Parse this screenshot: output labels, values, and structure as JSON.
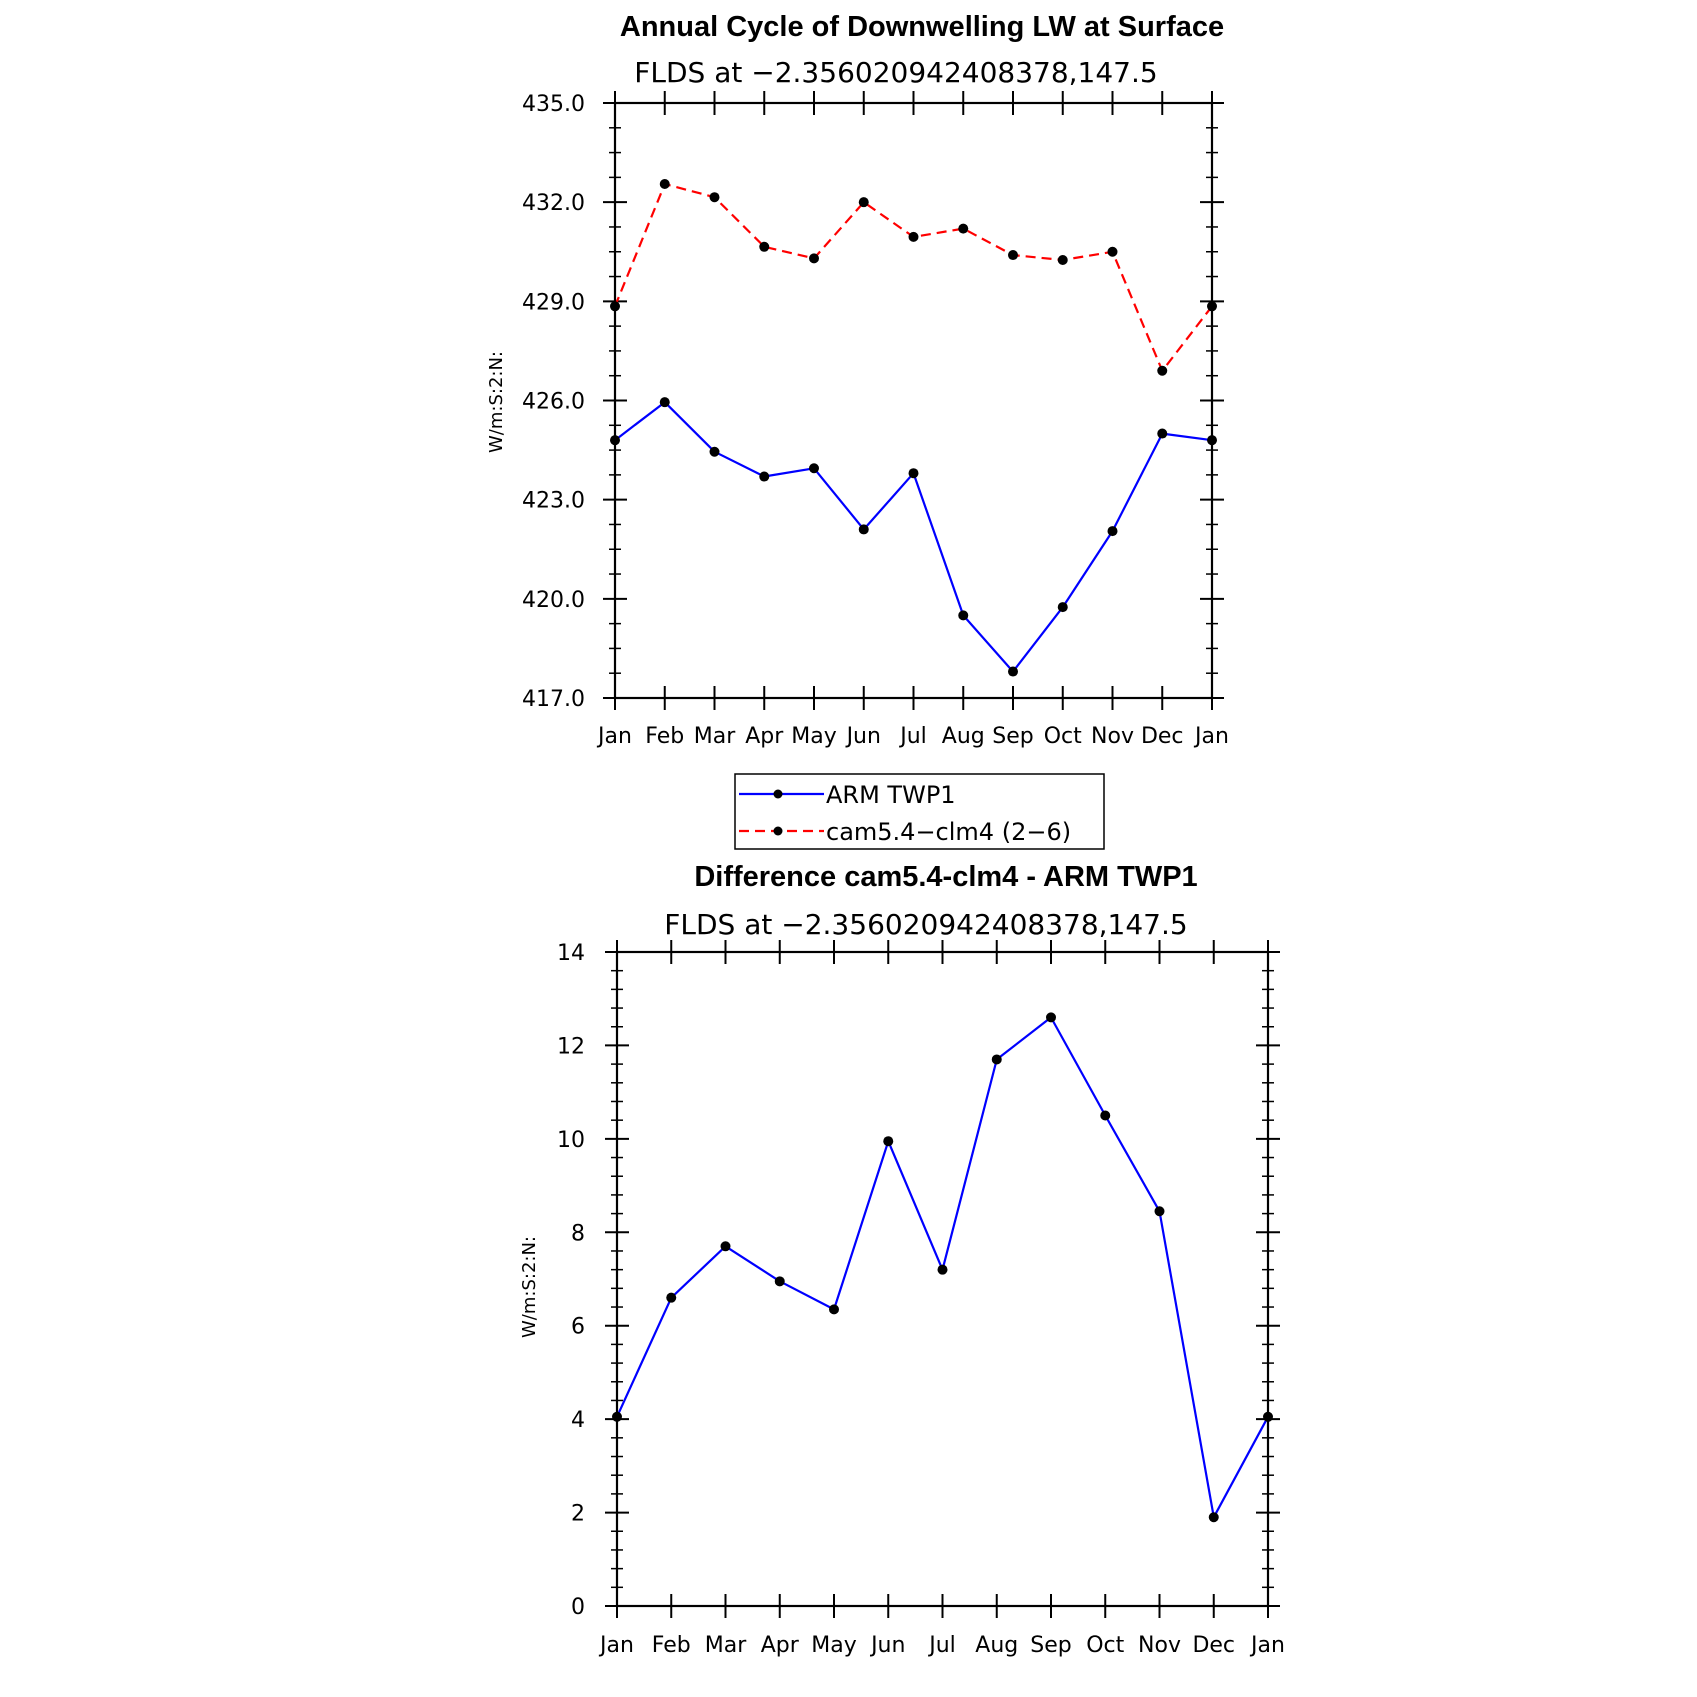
{
  "chart_data": [
    {
      "type": "line",
      "title": "Annual Cycle of Downwelling LW at Surface",
      "subtitle": "FLDS at −2.356020942408378,147.5",
      "ylabel": "W/m:S:2:N:",
      "xlabel": "",
      "categories": [
        "Jan",
        "Feb",
        "Mar",
        "Apr",
        "May",
        "Jun",
        "Jul",
        "Aug",
        "Sep",
        "Oct",
        "Nov",
        "Dec",
        "Jan"
      ],
      "ylim": [
        417.0,
        435.0
      ],
      "yticks": [
        "417.0",
        "420.0",
        "423.0",
        "426.0",
        "429.0",
        "432.0",
        "435.0"
      ],
      "grid": false,
      "legend_position": "below",
      "series": [
        {
          "name": "ARM TWP1",
          "color": "#0000ff",
          "dash": "solid",
          "values": [
            424.8,
            425.95,
            424.45,
            423.7,
            423.95,
            422.1,
            423.8,
            419.5,
            417.8,
            419.75,
            422.05,
            425.0,
            424.8
          ]
        },
        {
          "name": "cam5.4−clm4 (2−6)",
          "color": "#ff0000",
          "dash": "dashed",
          "values": [
            428.85,
            432.55,
            432.15,
            430.65,
            430.3,
            432.0,
            430.95,
            431.2,
            430.4,
            430.25,
            430.5,
            426.9,
            428.85
          ]
        }
      ]
    },
    {
      "type": "line",
      "title": "Difference cam5.4-clm4 - ARM TWP1",
      "subtitle": "FLDS at −2.356020942408378,147.5",
      "ylabel": "W/m:S:2:N:",
      "xlabel": "",
      "categories": [
        "Jan",
        "Feb",
        "Mar",
        "Apr",
        "May",
        "Jun",
        "Jul",
        "Aug",
        "Sep",
        "Oct",
        "Nov",
        "Dec",
        "Jan"
      ],
      "ylim": [
        0,
        14
      ],
      "yticks": [
        "0",
        "2",
        "4",
        "6",
        "8",
        "10",
        "12",
        "14"
      ],
      "grid": false,
      "series": [
        {
          "color": "#0000ff",
          "dash": "solid",
          "values": [
            4.05,
            6.6,
            7.7,
            6.95,
            6.35,
            9.95,
            7.2,
            11.7,
            12.6,
            10.5,
            8.45,
            1.9,
            4.05
          ]
        }
      ]
    }
  ]
}
